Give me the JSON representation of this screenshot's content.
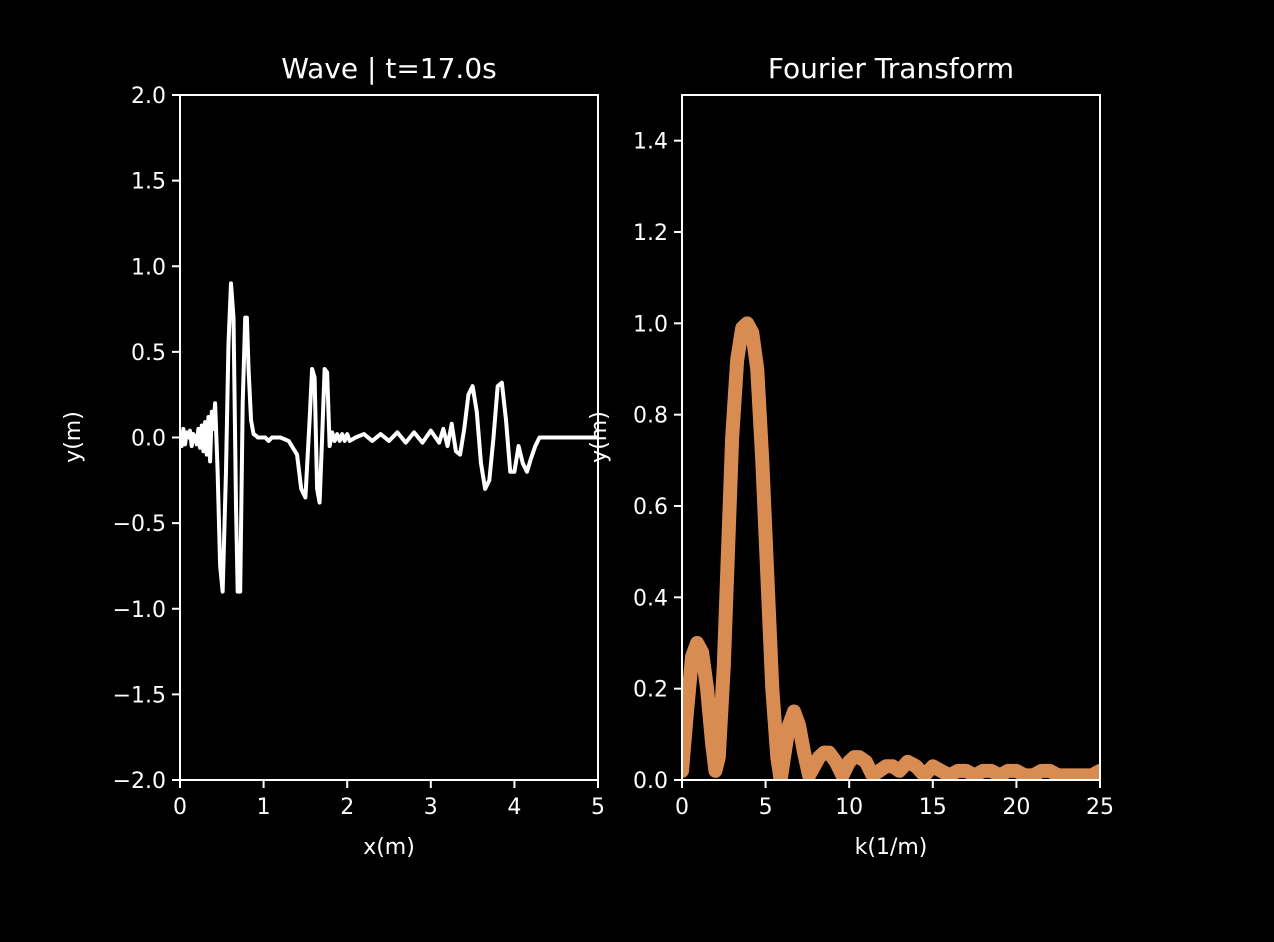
{
  "background": "#000000",
  "axis_color": "#ffffff",
  "chart_data": [
    {
      "type": "line",
      "title": "Wave | t=17.0s",
      "xlabel": "x(m)",
      "ylabel": "y(m)",
      "xlim": [
        0,
        5
      ],
      "ylim": [
        -2.0,
        2.0
      ],
      "xticks": [
        "0",
        "1",
        "2",
        "3",
        "4",
        "5"
      ],
      "yticks": [
        "−2.0",
        "−1.5",
        "−1.0",
        "−0.5",
        "0.0",
        "0.5",
        "1.0",
        "1.5",
        "2.0"
      ],
      "line_color": "#ffffff",
      "series": [
        {
          "x": [
            0.0,
            0.02,
            0.04,
            0.06,
            0.08,
            0.1,
            0.12,
            0.14,
            0.16,
            0.18,
            0.2,
            0.22,
            0.24,
            0.26,
            0.28,
            0.3,
            0.32,
            0.34,
            0.36,
            0.38,
            0.4,
            0.42,
            0.45,
            0.48,
            0.51,
            0.55,
            0.58,
            0.61,
            0.64,
            0.67,
            0.69,
            0.72,
            0.75,
            0.78,
            0.8,
            0.82,
            0.85,
            0.88,
            0.91,
            0.93,
            0.96,
            0.99,
            1.02,
            1.06,
            1.1,
            1.2,
            1.3,
            1.4,
            1.45,
            1.5,
            1.55,
            1.58,
            1.61,
            1.64,
            1.67,
            1.7,
            1.73,
            1.76,
            1.79,
            1.82,
            1.85,
            1.88,
            1.91,
            1.94,
            1.97,
            2.0,
            2.03,
            2.1,
            2.2,
            2.3,
            2.4,
            2.5,
            2.6,
            2.7,
            2.8,
            2.9,
            3.0,
            3.1,
            3.15,
            3.2,
            3.25,
            3.3,
            3.35,
            3.4,
            3.45,
            3.5,
            3.55,
            3.6,
            3.65,
            3.7,
            3.75,
            3.8,
            3.85,
            3.9,
            3.95,
            4.0,
            4.05,
            4.1,
            4.15,
            4.2,
            4.25,
            4.3,
            4.4,
            4.5,
            4.6,
            4.7,
            4.8,
            4.9,
            5.0
          ],
          "y": [
            0.02,
            -0.05,
            0.05,
            -0.04,
            0.03,
            0.0,
            0.04,
            -0.05,
            0.02,
            0.0,
            -0.04,
            0.05,
            -0.06,
            0.07,
            -0.08,
            0.09,
            -0.1,
            0.12,
            -0.14,
            0.15,
            0.05,
            0.2,
            -0.2,
            -0.75,
            -0.9,
            -0.2,
            0.55,
            0.9,
            0.7,
            -0.4,
            -0.9,
            -0.9,
            0.2,
            0.7,
            0.7,
            0.4,
            0.1,
            0.02,
            0.01,
            0.0,
            0.0,
            0.0,
            0.0,
            -0.02,
            0.0,
            0.0,
            -0.02,
            -0.1,
            -0.3,
            -0.35,
            0.1,
            0.4,
            0.35,
            -0.3,
            -0.38,
            0.0,
            0.4,
            0.38,
            -0.05,
            0.03,
            -0.02,
            0.02,
            -0.02,
            0.02,
            -0.02,
            0.02,
            -0.02,
            0.0,
            0.02,
            -0.02,
            0.02,
            -0.02,
            0.03,
            -0.03,
            0.03,
            -0.03,
            0.04,
            -0.03,
            0.05,
            -0.05,
            0.08,
            -0.08,
            -0.1,
            0.05,
            0.25,
            0.3,
            0.15,
            -0.15,
            -0.3,
            -0.25,
            0.0,
            0.3,
            0.32,
            0.1,
            -0.2,
            -0.2,
            -0.05,
            -0.15,
            -0.2,
            -0.12,
            -0.05,
            0.0,
            0.0,
            0.0,
            0.0,
            0.0,
            0.0,
            0.0,
            0.0
          ]
        }
      ]
    },
    {
      "type": "line",
      "title": "Fourier Transform",
      "xlabel": "k(1/m)",
      "ylabel": "y(m)",
      "xlim": [
        0,
        25
      ],
      "ylim": [
        0.0,
        1.5
      ],
      "xticks": [
        "0",
        "5",
        "10",
        "15",
        "20",
        "25"
      ],
      "yticks": [
        "0.0",
        "0.2",
        "0.4",
        "0.6",
        "0.8",
        "1.0",
        "1.2",
        "1.4"
      ],
      "line_color": "#d88c52",
      "series": [
        {
          "x": [
            0.0,
            0.3,
            0.6,
            0.9,
            1.2,
            1.5,
            1.8,
            2.0,
            2.2,
            2.5,
            2.8,
            3.0,
            3.3,
            3.6,
            3.9,
            4.2,
            4.5,
            4.8,
            5.1,
            5.4,
            5.7,
            5.9,
            6.1,
            6.4,
            6.7,
            7.0,
            7.3,
            7.6,
            7.9,
            8.2,
            8.5,
            8.8,
            9.2,
            9.6,
            10.0,
            10.3,
            10.6,
            11.0,
            11.4,
            11.8,
            12.2,
            12.6,
            13.0,
            13.5,
            14.0,
            14.5,
            15.0,
            15.5,
            16.0,
            16.5,
            17.0,
            17.5,
            18.0,
            18.5,
            19.0,
            19.5,
            20.0,
            20.5,
            21.0,
            21.5,
            22.0,
            22.5,
            23.0,
            23.5,
            24.0,
            24.5,
            25.0
          ],
          "y": [
            0.02,
            0.15,
            0.27,
            0.3,
            0.28,
            0.2,
            0.08,
            0.02,
            0.05,
            0.25,
            0.55,
            0.75,
            0.92,
            0.99,
            1.0,
            0.98,
            0.9,
            0.7,
            0.45,
            0.2,
            0.05,
            0.0,
            0.05,
            0.12,
            0.15,
            0.12,
            0.06,
            0.01,
            0.03,
            0.05,
            0.06,
            0.06,
            0.04,
            0.01,
            0.04,
            0.05,
            0.05,
            0.04,
            0.01,
            0.02,
            0.03,
            0.03,
            0.02,
            0.04,
            0.03,
            0.01,
            0.03,
            0.02,
            0.01,
            0.02,
            0.02,
            0.01,
            0.02,
            0.02,
            0.01,
            0.02,
            0.02,
            0.01,
            0.01,
            0.02,
            0.02,
            0.01,
            0.01,
            0.01,
            0.01,
            0.01,
            0.02
          ]
        }
      ]
    }
  ]
}
